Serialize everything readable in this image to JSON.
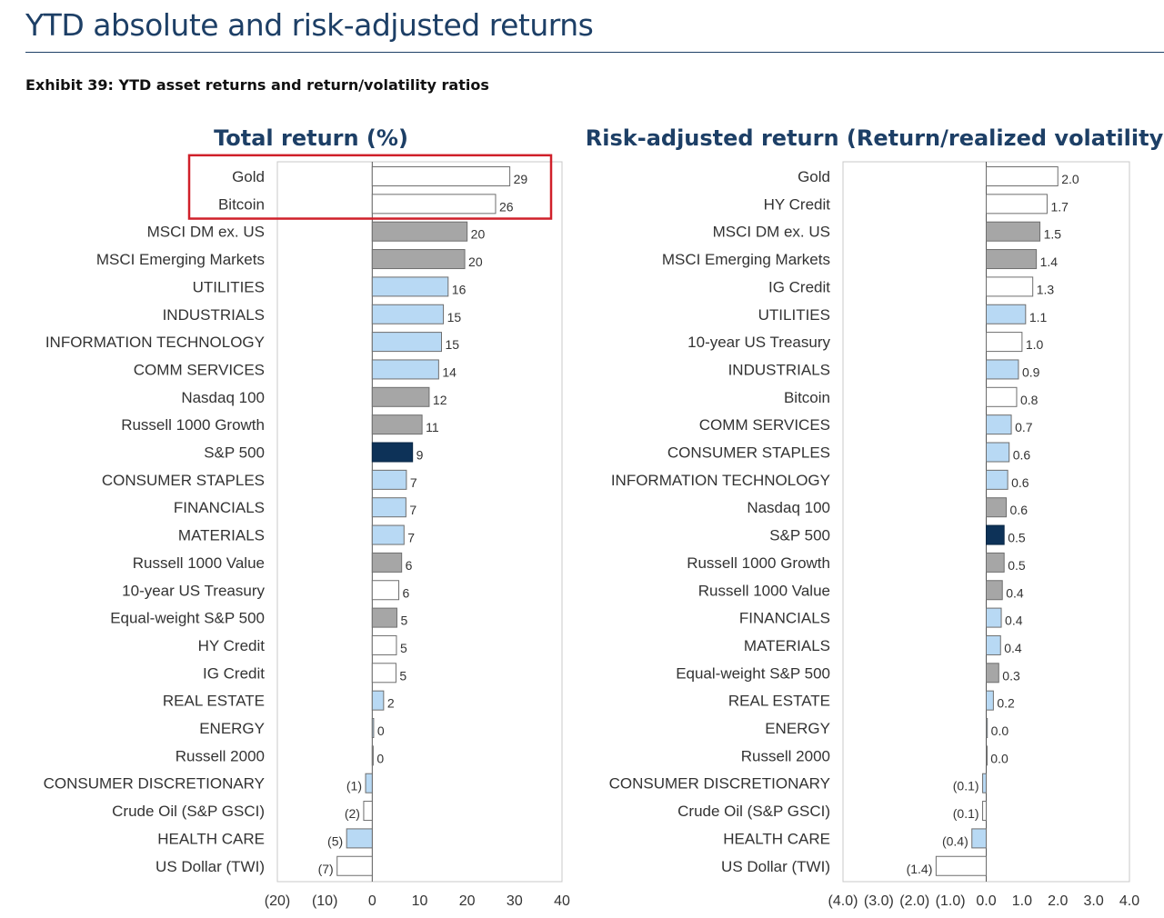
{
  "header": {
    "title": "YTD absolute and risk-adjusted returns",
    "exhibit": "Exhibit 39: YTD asset returns and return/volatility ratios"
  },
  "colors": {
    "grey": "#a6a6a6",
    "light_blue": "#b8d9f4",
    "white": "#ffffff",
    "navy": "#0d3258",
    "highlight_box": "#d0202a",
    "title": "#1d3f66"
  },
  "chart_data": [
    {
      "type": "bar",
      "orientation": "horizontal",
      "title": "Total return (%)",
      "xlim": [
        -20,
        40
      ],
      "xticks": [
        "(20)",
        "(10)",
        "0",
        "10",
        "20",
        "30",
        "40"
      ],
      "highlight_box": [
        "Gold",
        "Bitcoin"
      ],
      "bars": [
        {
          "label": "Gold",
          "value": 29,
          "value_label": "29",
          "fill": "white"
        },
        {
          "label": "Bitcoin",
          "value": 26,
          "value_label": "26",
          "fill": "white"
        },
        {
          "label": "MSCI DM ex. US",
          "value": 20,
          "value_label": "20",
          "fill": "grey"
        },
        {
          "label": "MSCI Emerging Markets",
          "value": 19.5,
          "value_label": "20",
          "fill": "grey"
        },
        {
          "label": "UTILITIES",
          "value": 16,
          "value_label": "16",
          "fill": "light_blue"
        },
        {
          "label": "INDUSTRIALS",
          "value": 15,
          "value_label": "15",
          "fill": "light_blue"
        },
        {
          "label": "INFORMATION TECHNOLOGY",
          "value": 14.6,
          "value_label": "15",
          "fill": "light_blue"
        },
        {
          "label": "COMM SERVICES",
          "value": 14,
          "value_label": "14",
          "fill": "light_blue"
        },
        {
          "label": "Nasdaq 100",
          "value": 12,
          "value_label": "12",
          "fill": "grey"
        },
        {
          "label": "Russell 1000 Growth",
          "value": 10.5,
          "value_label": "11",
          "fill": "grey"
        },
        {
          "label": "S&P 500",
          "value": 8.5,
          "value_label": "9",
          "fill": "navy"
        },
        {
          "label": "CONSUMER STAPLES",
          "value": 7.2,
          "value_label": "7",
          "fill": "light_blue"
        },
        {
          "label": "FINANCIALS",
          "value": 7.1,
          "value_label": "7",
          "fill": "light_blue"
        },
        {
          "label": "MATERIALS",
          "value": 6.7,
          "value_label": "7",
          "fill": "light_blue"
        },
        {
          "label": "Russell 1000 Value",
          "value": 6.2,
          "value_label": "6",
          "fill": "grey"
        },
        {
          "label": "10-year US Treasury",
          "value": 5.6,
          "value_label": "6",
          "fill": "white"
        },
        {
          "label": "Equal-weight S&P 500",
          "value": 5.2,
          "value_label": "5",
          "fill": "grey"
        },
        {
          "label": "HY Credit",
          "value": 5.1,
          "value_label": "5",
          "fill": "white"
        },
        {
          "label": "IG Credit",
          "value": 5.0,
          "value_label": "5",
          "fill": "white"
        },
        {
          "label": "REAL ESTATE",
          "value": 2.4,
          "value_label": "2",
          "fill": "light_blue"
        },
        {
          "label": "ENERGY",
          "value": 0.3,
          "value_label": "0",
          "fill": "light_blue"
        },
        {
          "label": "Russell 2000",
          "value": 0.2,
          "value_label": "0",
          "fill": "grey"
        },
        {
          "label": "CONSUMER DISCRETIONARY",
          "value": -1.4,
          "value_label": "(1)",
          "fill": "light_blue"
        },
        {
          "label": "Crude Oil (S&P GSCI)",
          "value": -1.8,
          "value_label": "(2)",
          "fill": "white"
        },
        {
          "label": "HEALTH CARE",
          "value": -5.4,
          "value_label": "(5)",
          "fill": "light_blue"
        },
        {
          "label": "US Dollar (TWI)",
          "value": -7.4,
          "value_label": "(7)",
          "fill": "white"
        }
      ]
    },
    {
      "type": "bar",
      "orientation": "horizontal",
      "title": "Risk-adjusted return (Return/realized volatility)",
      "xlim": [
        -4.0,
        4.0
      ],
      "xticks": [
        "(4.0)",
        "(3.0)",
        "(2.0)",
        "(1.0)",
        "0.0",
        "1.0",
        "2.0",
        "3.0",
        "4.0"
      ],
      "bars": [
        {
          "label": "Gold",
          "value": 2.0,
          "value_label": "2.0",
          "fill": "white"
        },
        {
          "label": "HY Credit",
          "value": 1.7,
          "value_label": "1.7",
          "fill": "white"
        },
        {
          "label": "MSCI DM ex. US",
          "value": 1.5,
          "value_label": "1.5",
          "fill": "grey"
        },
        {
          "label": "MSCI Emerging Markets",
          "value": 1.4,
          "value_label": "1.4",
          "fill": "grey"
        },
        {
          "label": "IG Credit",
          "value": 1.3,
          "value_label": "1.3",
          "fill": "white"
        },
        {
          "label": "UTILITIES",
          "value": 1.1,
          "value_label": "1.1",
          "fill": "light_blue"
        },
        {
          "label": "10-year US Treasury",
          "value": 1.0,
          "value_label": "1.0",
          "fill": "white"
        },
        {
          "label": "INDUSTRIALS",
          "value": 0.9,
          "value_label": "0.9",
          "fill": "light_blue"
        },
        {
          "label": "Bitcoin",
          "value": 0.85,
          "value_label": "0.8",
          "fill": "white"
        },
        {
          "label": "COMM SERVICES",
          "value": 0.7,
          "value_label": "0.7",
          "fill": "light_blue"
        },
        {
          "label": "CONSUMER STAPLES",
          "value": 0.64,
          "value_label": "0.6",
          "fill": "light_blue"
        },
        {
          "label": "INFORMATION TECHNOLOGY",
          "value": 0.6,
          "value_label": "0.6",
          "fill": "light_blue"
        },
        {
          "label": "Nasdaq 100",
          "value": 0.56,
          "value_label": "0.6",
          "fill": "grey"
        },
        {
          "label": "S&P 500",
          "value": 0.5,
          "value_label": "0.5",
          "fill": "navy"
        },
        {
          "label": "Russell 1000 Growth",
          "value": 0.5,
          "value_label": "0.5",
          "fill": "grey"
        },
        {
          "label": "Russell 1000 Value",
          "value": 0.45,
          "value_label": "0.4",
          "fill": "grey"
        },
        {
          "label": "FINANCIALS",
          "value": 0.42,
          "value_label": "0.4",
          "fill": "light_blue"
        },
        {
          "label": "MATERIALS",
          "value": 0.4,
          "value_label": "0.4",
          "fill": "light_blue"
        },
        {
          "label": "Equal-weight S&P 500",
          "value": 0.35,
          "value_label": "0.3",
          "fill": "grey"
        },
        {
          "label": "REAL ESTATE",
          "value": 0.2,
          "value_label": "0.2",
          "fill": "light_blue"
        },
        {
          "label": "ENERGY",
          "value": 0.03,
          "value_label": "0.0",
          "fill": "light_blue"
        },
        {
          "label": "Russell 2000",
          "value": 0.02,
          "value_label": "0.0",
          "fill": "grey"
        },
        {
          "label": "CONSUMER DISCRETIONARY",
          "value": -0.1,
          "value_label": "(0.1)",
          "fill": "light_blue"
        },
        {
          "label": "Crude Oil (S&P GSCI)",
          "value": -0.1,
          "value_label": "(0.1)",
          "fill": "white"
        },
        {
          "label": "HEALTH CARE",
          "value": -0.4,
          "value_label": "(0.4)",
          "fill": "light_blue"
        },
        {
          "label": "US Dollar (TWI)",
          "value": -1.4,
          "value_label": "(1.4)",
          "fill": "white"
        }
      ]
    }
  ]
}
